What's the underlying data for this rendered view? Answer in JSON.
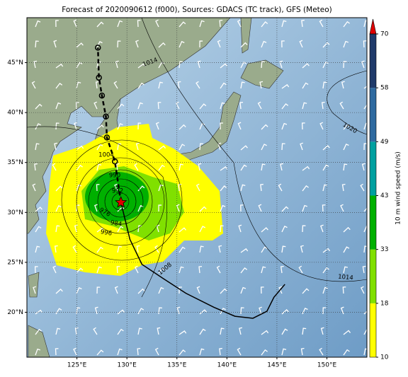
{
  "chart_data": {
    "type": "map",
    "title": "Forecast of 2020090612 (f000), Sources: GDACS (TC track), GFS (Meteo)",
    "xlim": [
      120,
      154
    ],
    "ylim": [
      15.5,
      49.5
    ],
    "xticks": [
      {
        "value": 125,
        "label": "125°E"
      },
      {
        "value": 130,
        "label": "130°E"
      },
      {
        "value": 135,
        "label": "135°E"
      },
      {
        "value": 140,
        "label": "140°E"
      },
      {
        "value": 145,
        "label": "145°E"
      },
      {
        "value": 150,
        "label": "150°E"
      }
    ],
    "yticks": [
      {
        "value": 20,
        "label": "20°N"
      },
      {
        "value": 25,
        "label": "25°N"
      },
      {
        "value": 30,
        "label": "30°N"
      },
      {
        "value": 35,
        "label": "35°N"
      },
      {
        "value": 40,
        "label": "40°N"
      },
      {
        "value": 45,
        "label": "45°N"
      }
    ],
    "grid": true,
    "past_track": {
      "x": [
        129.4,
        130.3,
        131.5,
        133.6,
        135.9,
        138.7,
        140.8,
        142.6,
        144.0,
        144.7,
        145.8
      ],
      "y": [
        31.0,
        27.3,
        24.8,
        23.4,
        21.9,
        20.5,
        19.6,
        19.4,
        20.1,
        21.5,
        22.8
      ],
      "color": "#000000"
    },
    "forecast_track": {
      "x": [
        129.4,
        128.8,
        128.0,
        127.9,
        127.5,
        127.2,
        127.1
      ],
      "y": [
        31.0,
        35.1,
        37.5,
        39.6,
        41.7,
        43.5,
        46.5
      ],
      "color": "#000000"
    },
    "storm_center": {
      "x": 129.4,
      "y": 31.0,
      "color": "#e00000"
    },
    "isobar_labels": [
      1014,
      1020,
      1014,
      1008,
      1004,
      990,
      992,
      976,
      984,
      996
    ],
    "colorbar": {
      "label": "10 m wind speed (m/s)",
      "ticks": [
        10,
        18,
        33,
        43,
        49,
        58,
        70
      ],
      "colors": [
        "#ffff00",
        "#80e000",
        "#00b000",
        "#00a0a0",
        "#2f6aa0",
        "#1f3a6a"
      ],
      "extend_color": "#e00000"
    }
  }
}
